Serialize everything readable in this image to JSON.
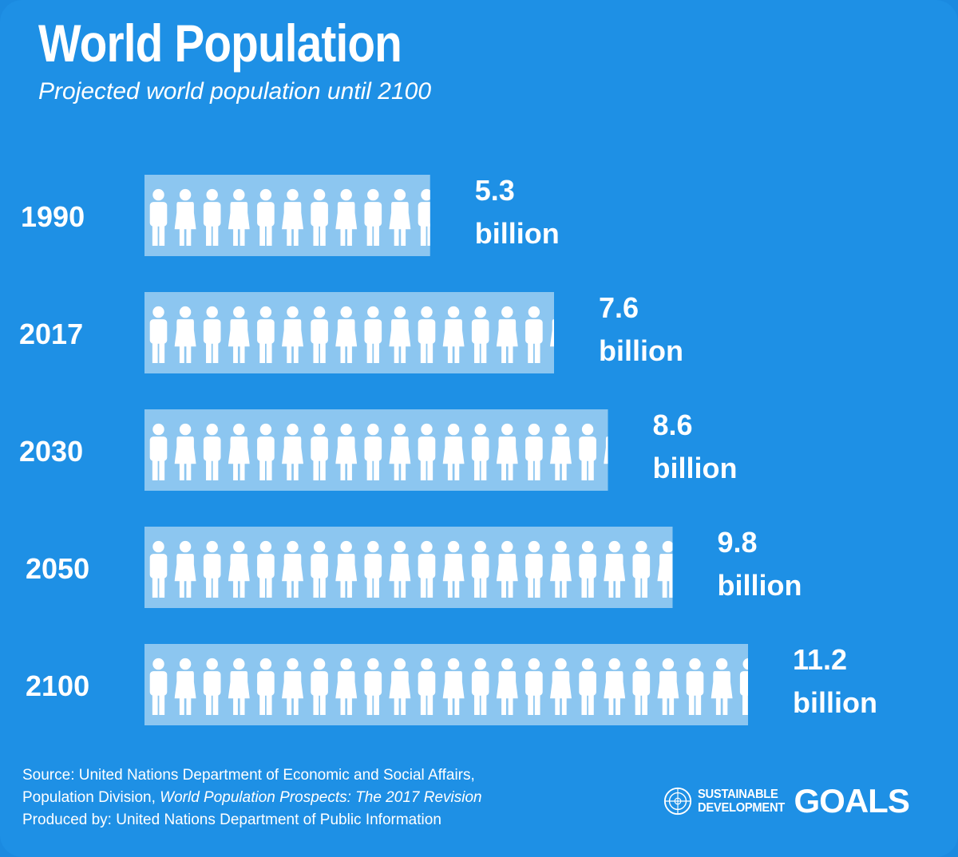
{
  "title": "World Population",
  "subtitle": "Projected world population until 2100",
  "chart_data": {
    "type": "bar",
    "orientation": "horizontal",
    "categories": [
      "1990",
      "2017",
      "2030",
      "2050",
      "2100"
    ],
    "values": [
      5.3,
      7.6,
      8.6,
      9.8,
      11.2
    ],
    "value_labels": [
      [
        "5.3",
        "billion"
      ],
      [
        "7.6",
        "billion"
      ],
      [
        "8.6",
        "billion"
      ],
      [
        "9.8",
        "billion"
      ],
      [
        "11.2",
        "billion"
      ]
    ],
    "unit": "billion",
    "icon": "person-icon"
  },
  "source": {
    "line1": "Source: United Nations Department of Economic and Social Affairs,",
    "line2_prefix": "Population Division, ",
    "line2_italic": "World Population Prospects: The 2017 Revision",
    "line3": "Produced by: United Nations Department of Public Information"
  },
  "logo": {
    "small_line1": "SUSTAINABLE",
    "small_line2": "DEVELOPMENT",
    "big": "GOALS"
  },
  "colors": {
    "background": "#1e90e5",
    "bar": "#8cc6f0",
    "icon": "#ffffff",
    "text": "#ffffff"
  }
}
